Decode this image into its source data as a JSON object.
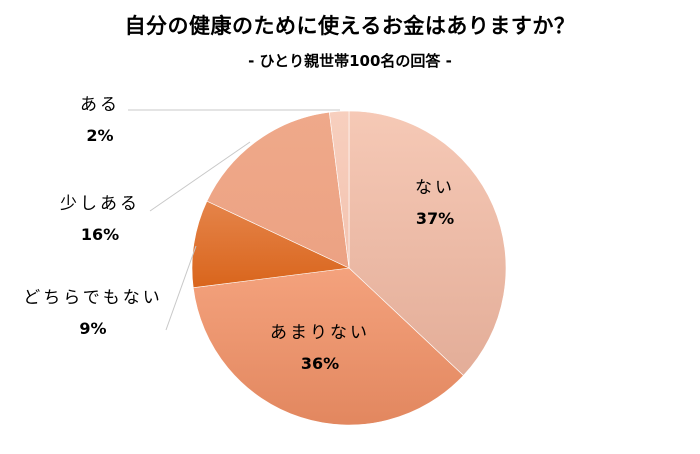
{
  "title": "自分の健康のために使えるお金はありますか？",
  "subtitle": "- ひとり親世帯100名の回答 -",
  "chart_data": {
    "type": "pie",
    "title": "自分の健康のために使えるお金はありますか？",
    "subtitle": "- ひとり親世帯100名の回答 -",
    "categories": [
      "ない",
      "あまりない",
      "どちらでもない",
      "少しある",
      "ある"
    ],
    "values": [
      37,
      36,
      9,
      16,
      2
    ],
    "labels": [
      "37%",
      "36%",
      "9%",
      "16%",
      "2%"
    ],
    "colors": [
      "#f3c2ae",
      "#f0956c",
      "#e06e26",
      "#eea88a",
      "#f6cdbd"
    ],
    "legend": "none (data labels)",
    "start_angle": "12 o'clock, clockwise"
  },
  "slices": [
    {
      "name": "ない",
      "pct": "37%"
    },
    {
      "name": "あまりない",
      "pct": "36%"
    },
    {
      "name": "どちらでもない",
      "pct": "9%"
    },
    {
      "name": "少しある",
      "pct": "16%"
    },
    {
      "name": "ある",
      "pct": "2%"
    }
  ]
}
